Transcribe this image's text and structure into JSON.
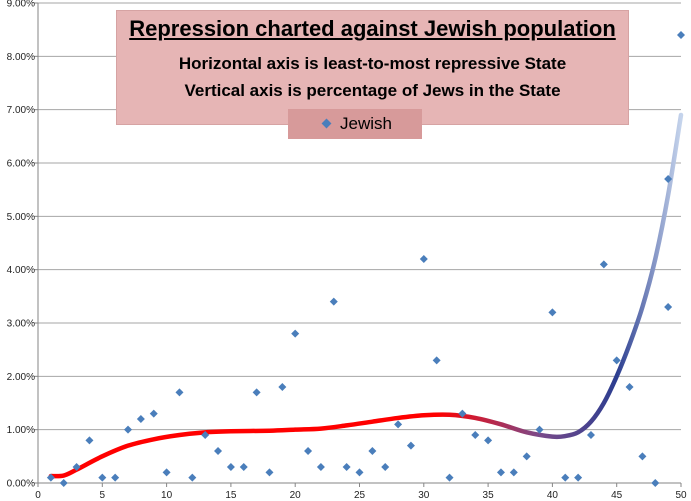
{
  "chart_data": {
    "type": "scatter",
    "title": "Repression charted against Jewish population",
    "subtitle_lines": [
      "Horizontal axis is least-to-most repressive State",
      "Vertical axis is percentage of Jews in the State"
    ],
    "xlabel": "",
    "ylabel": "",
    "xlim": [
      0,
      50
    ],
    "ylim": [
      0,
      0.09
    ],
    "x_ticks": [
      0,
      5,
      10,
      15,
      20,
      25,
      30,
      35,
      40,
      45,
      50
    ],
    "y_ticks": [
      0,
      0.01,
      0.02,
      0.03,
      0.04,
      0.05,
      0.06,
      0.07,
      0.08,
      0.09
    ],
    "y_tick_labels": [
      "0.00%",
      "1.00%",
      "2.00%",
      "3.00%",
      "4.00%",
      "5.00%",
      "6.00%",
      "7.00%",
      "8.00%",
      "9.00%"
    ],
    "grid": "horizontal",
    "legend_position": "top-center",
    "series": [
      {
        "name": "Jewish",
        "color": "#4a7ebb",
        "marker": "diamond",
        "points": [
          [
            1,
            0.001
          ],
          [
            2,
            0.0
          ],
          [
            3,
            0.003
          ],
          [
            4,
            0.008
          ],
          [
            5,
            0.001
          ],
          [
            6,
            0.001
          ],
          [
            7,
            0.01
          ],
          [
            8,
            0.012
          ],
          [
            9,
            0.013
          ],
          [
            10,
            0.002
          ],
          [
            11,
            0.017
          ],
          [
            12,
            0.001
          ],
          [
            13,
            0.009
          ],
          [
            14,
            0.006
          ],
          [
            15,
            0.003
          ],
          [
            16,
            0.003
          ],
          [
            17,
            0.017
          ],
          [
            18,
            0.002
          ],
          [
            19,
            0.018
          ],
          [
            20,
            0.028
          ],
          [
            21,
            0.006
          ],
          [
            22,
            0.003
          ],
          [
            23,
            0.034
          ],
          [
            24,
            0.003
          ],
          [
            25,
            0.002
          ],
          [
            26,
            0.006
          ],
          [
            27,
            0.003
          ],
          [
            28,
            0.011
          ],
          [
            29,
            0.007
          ],
          [
            30,
            0.042
          ],
          [
            31,
            0.023
          ],
          [
            32,
            0.001
          ],
          [
            33,
            0.013
          ],
          [
            34,
            0.009
          ],
          [
            35,
            0.008
          ],
          [
            36,
            0.002
          ],
          [
            37,
            0.002
          ],
          [
            38,
            0.005
          ],
          [
            39,
            0.01
          ],
          [
            40,
            0.032
          ],
          [
            41,
            0.001
          ],
          [
            42,
            0.001
          ],
          [
            43,
            0.009
          ],
          [
            44,
            0.041
          ],
          [
            45,
            0.023
          ],
          [
            46,
            0.018
          ],
          [
            47,
            0.005
          ],
          [
            48,
            0.0
          ],
          [
            49,
            0.033
          ],
          [
            49,
            0.057
          ],
          [
            50,
            0.084
          ]
        ]
      }
    ],
    "trendline": {
      "colors": [
        "#ff0000",
        "#7a4a8a",
        "#2c3e90",
        "#c5d4ec"
      ],
      "points": [
        [
          1,
          0.0013
        ],
        [
          2,
          0.0014
        ],
        [
          3,
          0.0025
        ],
        [
          5,
          0.005
        ],
        [
          7,
          0.007
        ],
        [
          9,
          0.0082
        ],
        [
          11,
          0.009
        ],
        [
          13,
          0.0095
        ],
        [
          15,
          0.0097
        ],
        [
          18,
          0.0098
        ],
        [
          20,
          0.01
        ],
        [
          22,
          0.0102
        ],
        [
          24,
          0.0108
        ],
        [
          26,
          0.0115
        ],
        [
          28,
          0.0122
        ],
        [
          30,
          0.0127
        ],
        [
          32,
          0.0128
        ],
        [
          34,
          0.0122
        ],
        [
          36,
          0.011
        ],
        [
          38,
          0.0095
        ],
        [
          40,
          0.0087
        ],
        [
          41,
          0.0088
        ],
        [
          42,
          0.0095
        ],
        [
          43,
          0.0115
        ],
        [
          44,
          0.015
        ],
        [
          45,
          0.02
        ],
        [
          46,
          0.026
        ],
        [
          47,
          0.033
        ],
        [
          48,
          0.042
        ],
        [
          49,
          0.054
        ],
        [
          50,
          0.069
        ]
      ]
    }
  }
}
